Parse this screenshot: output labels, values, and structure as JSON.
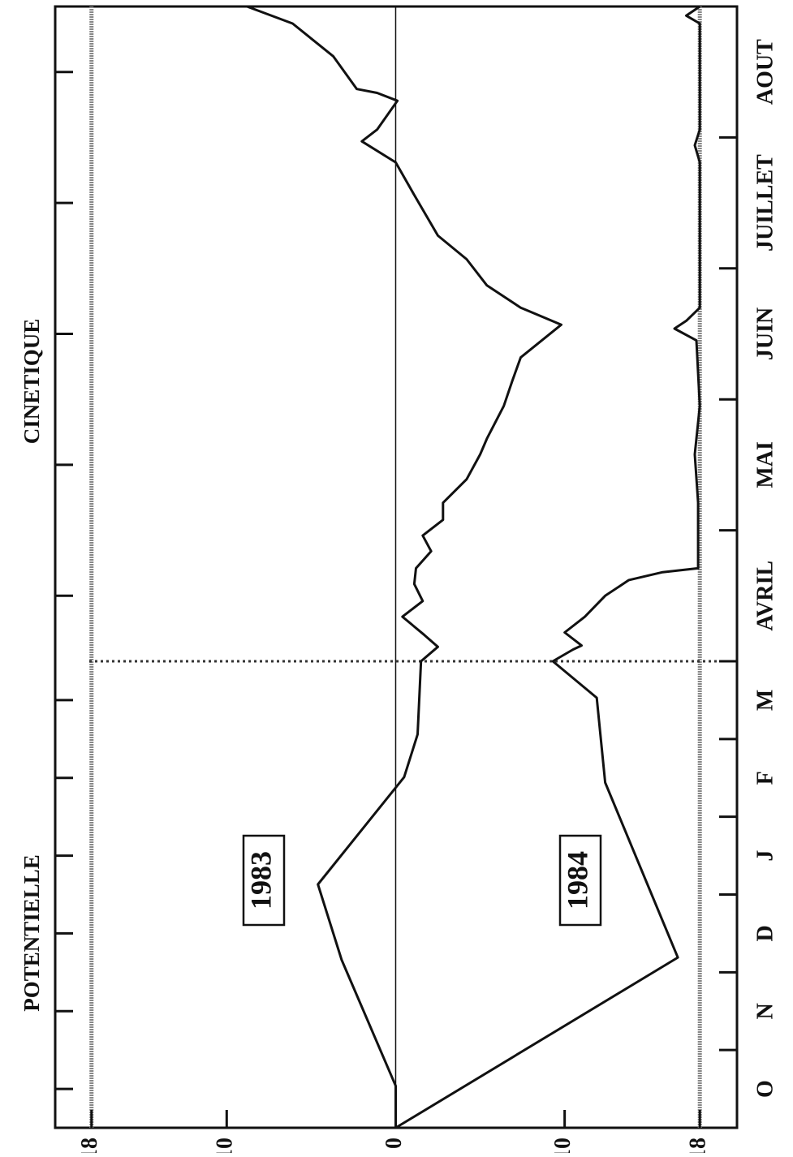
{
  "chart_data": {
    "type": "line",
    "categories": [
      "O",
      "N",
      "D",
      "J",
      "F",
      "M",
      "AVRIL",
      "MAI",
      "JUIN",
      "JUILLET",
      "AOUT"
    ],
    "annotations": [
      "POTENTIELLE",
      "CINETIQUE"
    ],
    "xlim": [
      0,
      11
    ],
    "divider": 6,
    "ylim": [
      -20.2,
      20.15
    ],
    "yticks": [
      18,
      10,
      0,
      -10,
      -18
    ],
    "reference_lines": [
      18,
      0,
      -18
    ],
    "series": [
      {
        "name": "1983",
        "color": "#111111",
        "x": [
          0,
          0.54,
          2.16,
          3.13,
          4.51,
          5.06,
          6.0,
          6.11,
          6.2,
          6.34,
          6.46,
          6.59,
          6.71,
          6.84,
          6.96,
          7.08,
          7.21,
          7.39,
          7.58,
          7.7,
          7.95,
          8.14,
          8.32,
          8.57,
          8.7,
          8.87,
          9.07,
          9.25,
          9.56,
          9.81,
          9.97,
          10.06,
          10.28,
          10.34,
          10.37,
          10.62,
          10.87,
          11.0
        ],
        "values": [
          0,
          0,
          3.2,
          4.6,
          -0.5,
          -1.3,
          -1.5,
          -2.5,
          -1.7,
          -0.4,
          -1.6,
          -1.1,
          -1.2,
          -2.1,
          -1.6,
          -2.8,
          -2.8,
          -4.2,
          -5.0,
          -5.4,
          -6.4,
          -6.9,
          -7.4,
          -9.8,
          -7.4,
          -5.4,
          -4.2,
          -2.5,
          -1.1,
          0,
          2.0,
          1.1,
          -0.1,
          1.1,
          2.3,
          3.7,
          6.1,
          8.8
        ]
      },
      {
        "name": "1984",
        "color": "#111111",
        "x": [
          0,
          2.19,
          4.44,
          5.53,
          6.0,
          6.09,
          6.12,
          6.22,
          6.34,
          6.5,
          6.62,
          6.68,
          6.71,
          7.21,
          7.58,
          7.95,
          8.45,
          8.54,
          8.6,
          8.7,
          9.81,
          9.94,
          10.06,
          10.87,
          10.93,
          11.0
        ],
        "values": [
          0,
          -16.7,
          -12.4,
          -11.9,
          -9.3,
          -10.5,
          -11.0,
          -10.0,
          -11.2,
          -12.4,
          -13.8,
          -15.8,
          -17.9,
          -17.9,
          -17.7,
          -18.0,
          -17.8,
          -16.5,
          -17.2,
          -18.0,
          -18.0,
          -17.7,
          -18.0,
          -18.0,
          -17.2,
          -18.0
        ]
      }
    ]
  }
}
